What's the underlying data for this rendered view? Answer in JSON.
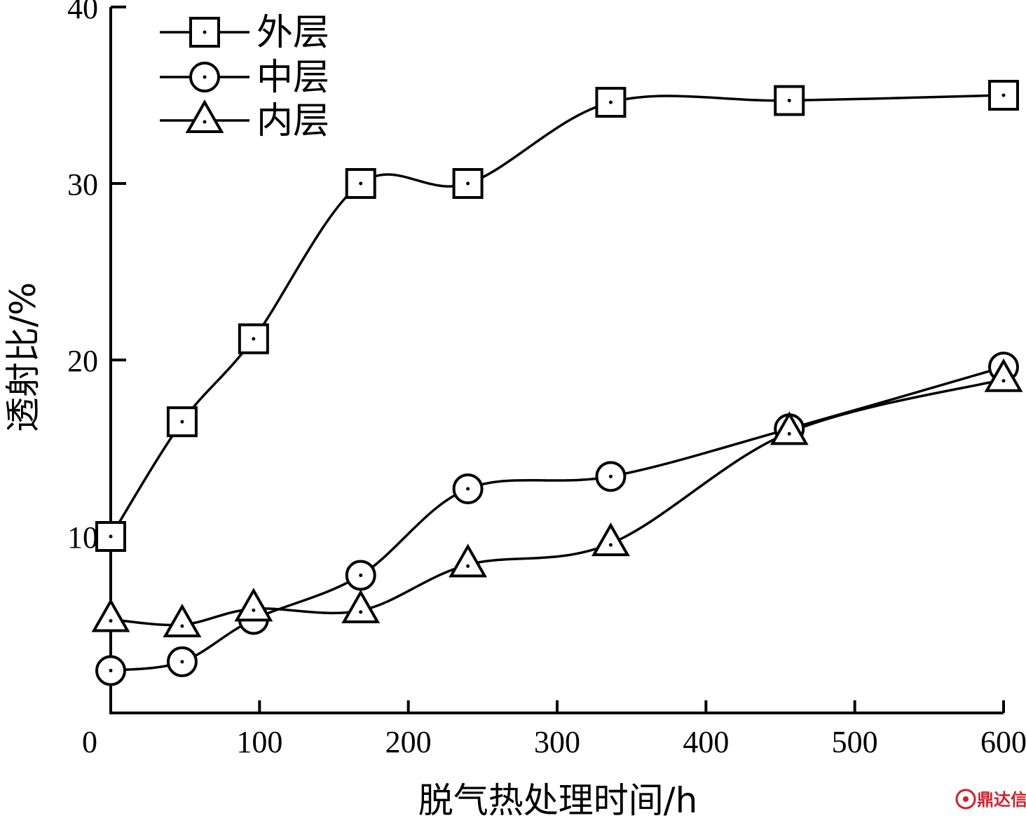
{
  "chart_data": {
    "type": "line",
    "title": "",
    "xlabel": "脱气热处理时间/h",
    "ylabel": "透射比/%",
    "xlim": [
      0,
      600
    ],
    "ylim": [
      0,
      40
    ],
    "x_ticks": [
      "0",
      "100",
      "200",
      "300",
      "400",
      "500",
      "600"
    ],
    "y_ticks": [
      "10",
      "20",
      "30",
      "40"
    ],
    "grid": false,
    "legend_position": "top-left",
    "series": [
      {
        "name": "外层",
        "marker": "square",
        "x": [
          0,
          48,
          96,
          168,
          240,
          336,
          456,
          600
        ],
        "y": [
          10.0,
          16.5,
          21.2,
          30.0,
          30.0,
          34.6,
          34.7,
          35.0
        ]
      },
      {
        "name": "中层",
        "marker": "circle",
        "x": [
          0,
          48,
          96,
          168,
          240,
          336,
          456,
          600
        ],
        "y": [
          2.4,
          2.9,
          5.3,
          7.8,
          12.7,
          13.4,
          16.1,
          19.6
        ]
      },
      {
        "name": "内层",
        "marker": "triangle",
        "x": [
          0,
          48,
          96,
          168,
          240,
          336,
          456,
          600
        ],
        "y": [
          5.3,
          5.0,
          5.9,
          5.8,
          8.4,
          9.6,
          15.9,
          18.9
        ]
      }
    ]
  },
  "watermark": {
    "text": "鼎达信",
    "color": "#d21f2a"
  }
}
